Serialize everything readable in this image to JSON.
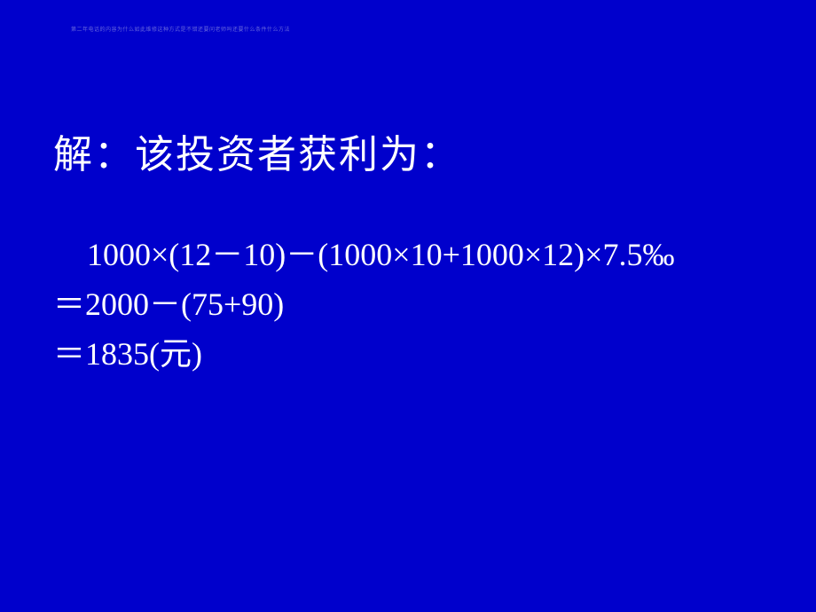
{
  "slide": {
    "background_color": "#0000cc",
    "text_color": "#ffffff",
    "watermark": "第二年电话的内容为什么如此维修这种方式是不错还要问老师吗还要什么条件什么方法",
    "title": "解：该投资者获利为：",
    "title_fontsize": 44,
    "calculation": {
      "fontsize": 36,
      "font_family": "Times New Roman",
      "lines": [
        "1000×(12－10)－(1000×10+1000×12)×7.5‰",
        "＝2000－(75+90)",
        "＝1835(元)"
      ],
      "first_line_indent": true
    }
  }
}
